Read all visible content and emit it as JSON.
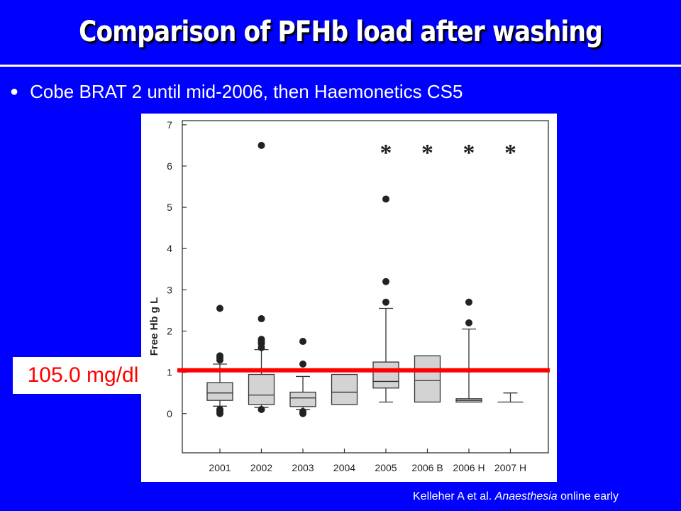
{
  "slide": {
    "title": "Comparison of PFHb load after washing",
    "bullet": "Cobe BRAT 2 until mid-2006, then Haemonetics CS5",
    "threshold_label": "105.0 mg/dl",
    "citation_author": "Kelleher A et al. ",
    "citation_journal": "Anaesthesia",
    "citation_rest": " online early"
  },
  "colors": {
    "background": "#0000ff",
    "threshold_line": "#ff0000",
    "box_fill": "#d3d3d3"
  },
  "chart_data": {
    "type": "boxplot",
    "ylabel": "Free Hb g L",
    "ylim": [
      -0.95,
      7.1
    ],
    "yticks": [
      "0",
      "1",
      "2",
      "3",
      "4",
      "5",
      "6",
      "7"
    ],
    "categories": [
      "2001",
      "2002",
      "2003",
      "2004",
      "2005",
      "2006 B",
      "2006 H",
      "2007 H"
    ],
    "boxes": [
      {
        "q1": 0.32,
        "median": 0.5,
        "q3": 0.75,
        "whisker_low": 0.18,
        "whisker_high": 1.2,
        "outliers": [
          0.0,
          0.05,
          0.1,
          1.3,
          1.35,
          1.4,
          2.55
        ]
      },
      {
        "q1": 0.22,
        "median": 0.45,
        "q3": 0.95,
        "whisker_low": 0.15,
        "whisker_high": 1.55,
        "outliers": [
          0.1,
          1.6,
          1.7,
          1.75,
          1.8,
          2.3,
          6.5
        ]
      },
      {
        "q1": 0.17,
        "median": 0.38,
        "q3": 0.52,
        "whisker_low": 0.1,
        "whisker_high": 0.9,
        "outliers": [
          0.0,
          0.05,
          1.2,
          1.75
        ]
      },
      {
        "q1": 0.22,
        "median": 0.52,
        "q3": 0.95,
        "whisker_low": null,
        "whisker_high": null,
        "outliers": []
      },
      {
        "q1": 0.62,
        "median": 0.78,
        "q3": 1.25,
        "whisker_low": 0.28,
        "whisker_high": 2.55,
        "outliers": [
          2.7,
          3.2,
          5.2
        ]
      },
      {
        "q1": 0.28,
        "median": 0.8,
        "q3": 1.4,
        "whisker_low": null,
        "whisker_high": null,
        "outliers": []
      },
      {
        "q1": 0.28,
        "median": 0.32,
        "q3": 0.36,
        "whisker_low": null,
        "whisker_high": 2.05,
        "outliers": [
          2.2,
          2.7
        ]
      },
      {
        "q1": null,
        "median": 0.28,
        "q3": null,
        "whisker_low": null,
        "whisker_high": 0.5,
        "outliers": []
      }
    ],
    "significance_marker": "*",
    "significant_categories": [
      "2005",
      "2006 B",
      "2006 H",
      "2007 H"
    ],
    "reference_line": {
      "value": 1.05,
      "label": "105.0 mg/dl"
    }
  }
}
